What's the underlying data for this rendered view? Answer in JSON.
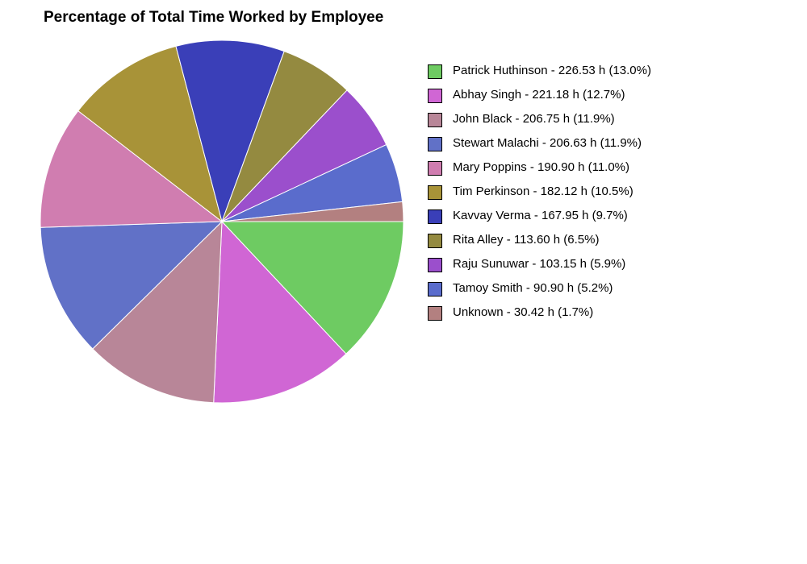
{
  "chart_data": {
    "type": "pie",
    "title": "Percentage of Total Time Worked by Employee",
    "unit": "h",
    "slices": [
      {
        "name": "Patrick Huthinson",
        "value": 226.53,
        "percent": 13.0,
        "color": "#6ECB62",
        "label": "Patrick Huthinson - 226.53 h (13.0%)"
      },
      {
        "name": "Abhay Singh",
        "value": 221.18,
        "percent": 12.7,
        "color": "#D066D4",
        "label": "Abhay Singh - 221.18 h (12.7%)"
      },
      {
        "name": "John Black",
        "value": 206.75,
        "percent": 11.9,
        "color": "#B88698",
        "label": "John Black - 206.75 h (11.9%)"
      },
      {
        "name": "Stewart Malachi",
        "value": 206.63,
        "percent": 11.9,
        "color": "#6171C7",
        "label": "Stewart Malachi - 206.63 h (11.9%)"
      },
      {
        "name": "Mary Poppins",
        "value": 190.9,
        "percent": 11.0,
        "color": "#D07DB0",
        "label": "Mary Poppins - 190.90 h (11.0%)"
      },
      {
        "name": "Tim Perkinson",
        "value": 182.12,
        "percent": 10.5,
        "color": "#A89338",
        "label": "Tim Perkinson - 182.12 h (10.5%)"
      },
      {
        "name": "Kavvay Verma",
        "value": 167.95,
        "percent": 9.7,
        "color": "#3A3FB8",
        "label": "Kavvay Verma - 167.95 h (9.7%)"
      },
      {
        "name": "Rita Alley",
        "value": 113.6,
        "percent": 6.5,
        "color": "#948A40",
        "label": "Rita Alley - 113.60 h (6.5%)"
      },
      {
        "name": "Raju Sunuwar",
        "value": 103.15,
        "percent": 5.9,
        "color": "#9B4FCC",
        "label": "Raju Sunuwar - 103.15 h (5.9%)"
      },
      {
        "name": "Tamoy Smith",
        "value": 90.9,
        "percent": 5.2,
        "color": "#5A6CCC",
        "label": "Tamoy Smith - 90.90 h (5.2%)"
      },
      {
        "name": "Unknown",
        "value": 30.42,
        "percent": 1.7,
        "color": "#B38080",
        "label": "Unknown - 30.42 h (1.7%)"
      }
    ],
    "start_angle": "3 o'clock",
    "direction": "clockwise",
    "legend_position": "right"
  }
}
